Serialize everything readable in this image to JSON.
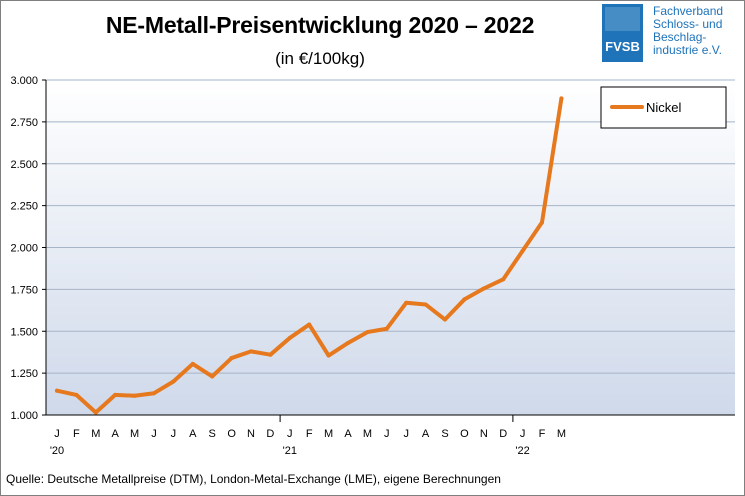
{
  "header": {
    "title": "NE-Metall-Preisentwicklung  2020 – 2022",
    "subtitle": "(in €/100kg)"
  },
  "logo": {
    "mark": "FVSB",
    "lines": [
      "Fachverband",
      "Schloss- und",
      "Beschlag-",
      "industrie e.V."
    ],
    "color": "#1e73b9"
  },
  "source": "Quelle: Deutsche Metallpreise (DTM), London-Metal-Exchange (LME), eigene Berechnungen",
  "chart_data": {
    "type": "line",
    "ylim": [
      1000,
      3000
    ],
    "yticks": [
      1000,
      1250,
      1500,
      1750,
      2000,
      2250,
      2500,
      2750,
      3000
    ],
    "ytick_labels": [
      "1.000",
      "1.250",
      "1.500",
      "1.750",
      "2.000",
      "2.250",
      "2.500",
      "2.750",
      "3.000"
    ],
    "categories": [
      "J",
      "F",
      "M",
      "A",
      "M",
      "J",
      "J",
      "A",
      "S",
      "O",
      "N",
      "D",
      "J",
      "F",
      "M",
      "A",
      "M",
      "J",
      "J",
      "A",
      "S",
      "O",
      "N",
      "D",
      "J",
      "F",
      "M"
    ],
    "year_labels": [
      {
        "index": 0,
        "label": "'20"
      },
      {
        "index": 12,
        "label": "'21"
      },
      {
        "index": 24,
        "label": "'22"
      }
    ],
    "series": [
      {
        "name": "Nickel",
        "color": "#e6781e",
        "values": [
          1145,
          1120,
          1015,
          1120,
          1115,
          1130,
          1200,
          1305,
          1230,
          1340,
          1380,
          1360,
          1460,
          1540,
          1355,
          1430,
          1495,
          1515,
          1670,
          1660,
          1570,
          1690,
          1755,
          1810,
          1980,
          2150,
          2890
        ]
      }
    ],
    "grid": true,
    "legend": "top-right",
    "background": [
      "#ffffff",
      "#cfd9ea"
    ]
  }
}
